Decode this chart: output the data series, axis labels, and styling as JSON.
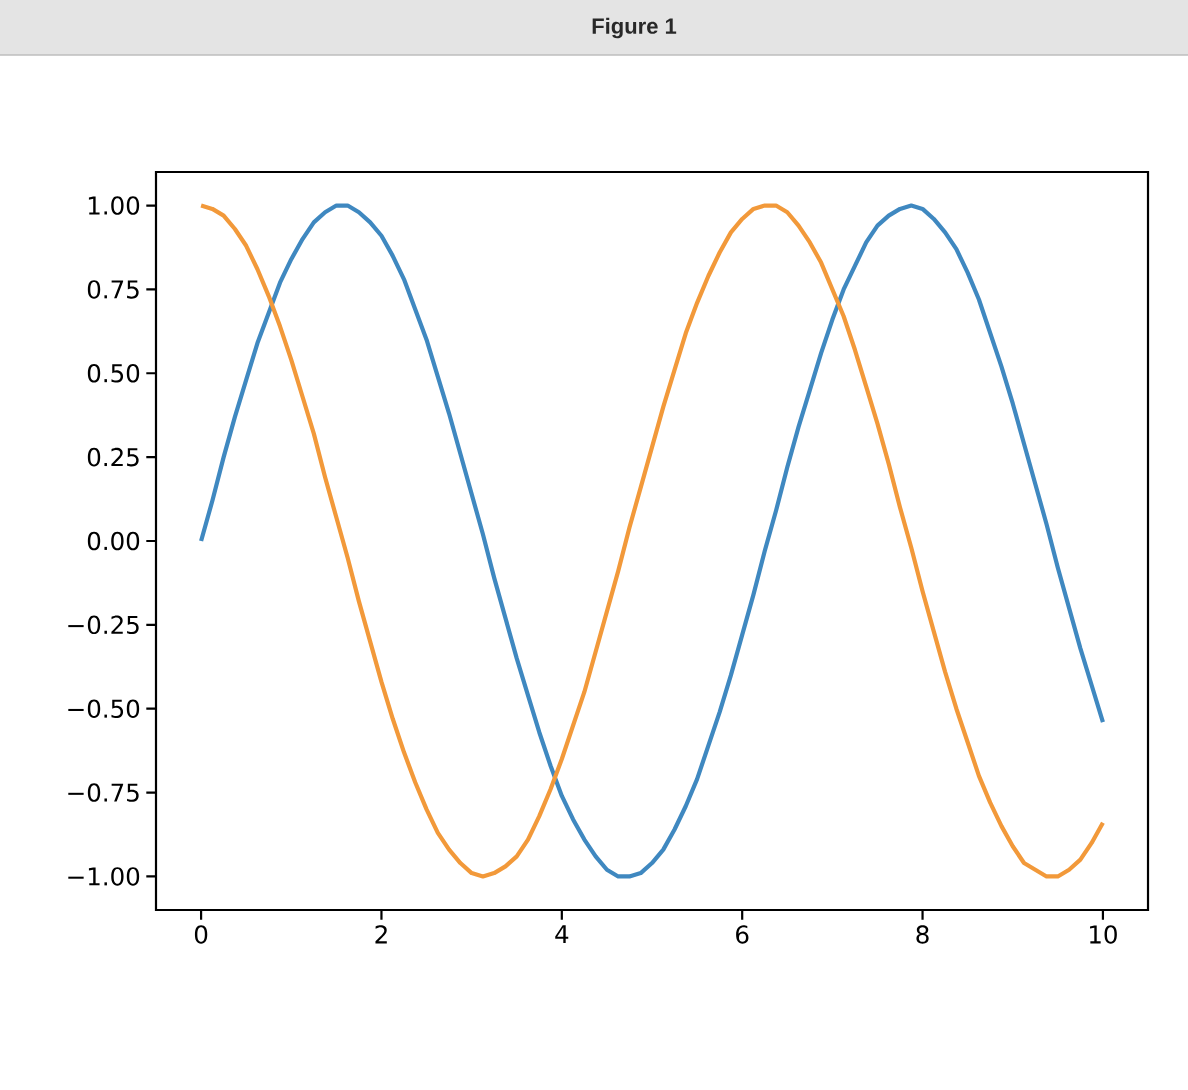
{
  "chart_data": {
    "type": "line",
    "title": "Figure 1",
    "xlim": [
      -0.5,
      10.5
    ],
    "ylim": [
      -1.1,
      1.1
    ],
    "xticks": [
      0,
      2,
      4,
      6,
      8,
      10
    ],
    "yticks": [
      {
        "value": -1.0,
        "label": "−1.00"
      },
      {
        "value": -0.75,
        "label": "−0.75"
      },
      {
        "value": -0.5,
        "label": "−0.50"
      },
      {
        "value": -0.25,
        "label": "−0.25"
      },
      {
        "value": 0.0,
        "label": "0.00"
      },
      {
        "value": 0.25,
        "label": "0.25"
      },
      {
        "value": 0.5,
        "label": "0.50"
      },
      {
        "value": 0.75,
        "label": "0.75"
      },
      {
        "value": 1.0,
        "label": "1.00"
      }
    ],
    "line_style": "solid",
    "x": [
      0,
      0.125,
      0.25,
      0.375,
      0.5,
      0.625,
      0.75,
      0.875,
      1,
      1.125,
      1.25,
      1.375,
      1.5,
      1.625,
      1.75,
      1.875,
      2,
      2.125,
      2.25,
      2.375,
      2.5,
      2.625,
      2.75,
      2.875,
      3,
      3.125,
      3.25,
      3.375,
      3.5,
      3.625,
      3.75,
      3.875,
      4,
      4.125,
      4.25,
      4.375,
      4.5,
      4.625,
      4.75,
      4.875,
      5,
      5.125,
      5.25,
      5.375,
      5.5,
      5.625,
      5.75,
      5.875,
      6,
      6.125,
      6.25,
      6.375,
      6.5,
      6.625,
      6.75,
      6.875,
      7,
      7.125,
      7.25,
      7.375,
      7.5,
      7.625,
      7.75,
      7.875,
      8,
      8.125,
      8.25,
      8.375,
      8.5,
      8.625,
      8.75,
      8.875,
      9,
      9.125,
      9.25,
      9.375,
      9.5,
      9.625,
      9.75,
      9.875,
      10
    ],
    "series": [
      {
        "color": "#3f88c0",
        "values": [
          0.0,
          0.12,
          0.25,
          0.37,
          0.48,
          0.59,
          0.68,
          0.77,
          0.84,
          0.9,
          0.95,
          0.98,
          1.0,
          1.0,
          0.98,
          0.95,
          0.91,
          0.85,
          0.78,
          0.69,
          0.6,
          0.49,
          0.38,
          0.26,
          0.14,
          0.02,
          -0.11,
          -0.23,
          -0.35,
          -0.46,
          -0.57,
          -0.67,
          -0.76,
          -0.83,
          -0.89,
          -0.94,
          -0.98,
          -1.0,
          -1.0,
          -0.99,
          -0.96,
          -0.92,
          -0.86,
          -0.79,
          -0.71,
          -0.61,
          -0.51,
          -0.4,
          -0.28,
          -0.16,
          -0.03,
          0.09,
          0.22,
          0.34,
          0.45,
          0.56,
          0.66,
          0.75,
          0.82,
          0.89,
          0.94,
          0.97,
          0.99,
          1.0,
          0.99,
          0.96,
          0.92,
          0.87,
          0.8,
          0.72,
          0.62,
          0.52,
          0.41,
          0.29,
          0.17,
          0.05,
          -0.08,
          -0.2,
          -0.32,
          -0.43,
          -0.54
        ]
      },
      {
        "color": "#f2993a",
        "values": [
          1.0,
          0.99,
          0.97,
          0.93,
          0.88,
          0.81,
          0.73,
          0.64,
          0.54,
          0.43,
          0.32,
          0.19,
          0.07,
          -0.05,
          -0.18,
          -0.3,
          -0.42,
          -0.53,
          -0.63,
          -0.72,
          -0.8,
          -0.87,
          -0.92,
          -0.96,
          -0.99,
          -1.0,
          -0.99,
          -0.97,
          -0.94,
          -0.89,
          -0.82,
          -0.74,
          -0.65,
          -0.55,
          -0.45,
          -0.33,
          -0.21,
          -0.09,
          0.04,
          0.16,
          0.28,
          0.4,
          0.51,
          0.62,
          0.71,
          0.79,
          0.86,
          0.92,
          0.96,
          0.99,
          1.0,
          1.0,
          0.98,
          0.94,
          0.89,
          0.83,
          0.75,
          0.67,
          0.57,
          0.46,
          0.35,
          0.23,
          0.1,
          -0.02,
          -0.15,
          -0.27,
          -0.39,
          -0.5,
          -0.6,
          -0.7,
          -0.78,
          -0.85,
          -0.91,
          -0.96,
          -0.98,
          -1.0,
          -1.0,
          -0.98,
          -0.95,
          -0.9,
          -0.84
        ]
      }
    ]
  }
}
